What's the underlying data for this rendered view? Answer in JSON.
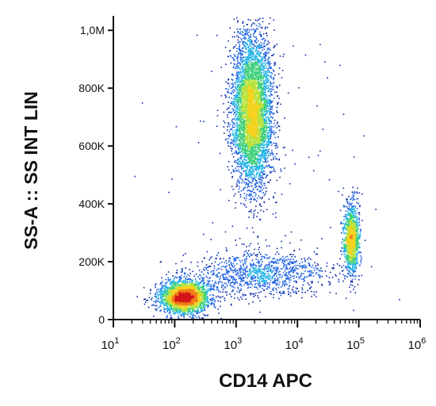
{
  "chart_data": {
    "type": "scatter",
    "title": "",
    "xlabel": "CD14 APC",
    "ylabel": "SS-A :: SS INT LIN",
    "x_scale": "log",
    "xlim": [
      10,
      1000000
    ],
    "ylim": [
      0,
      1050000
    ],
    "x_ticks": [
      {
        "value": 10,
        "label_base": "10",
        "label_exp": "1"
      },
      {
        "value": 100,
        "label_base": "10",
        "label_exp": "2"
      },
      {
        "value": 1000,
        "label_base": "10",
        "label_exp": "3"
      },
      {
        "value": 10000,
        "label_base": "10",
        "label_exp": "4"
      },
      {
        "value": 100000,
        "label_base": "10",
        "label_exp": "5"
      },
      {
        "value": 1000000,
        "label_base": "10",
        "label_exp": "6"
      }
    ],
    "y_ticks": [
      {
        "value": 0,
        "label": "0"
      },
      {
        "value": 200000,
        "label": "200K"
      },
      {
        "value": 400000,
        "label": "400K"
      },
      {
        "value": 600000,
        "label": "600K"
      },
      {
        "value": 800000,
        "label": "800K"
      },
      {
        "value": 1000000,
        "label": "1,0M"
      }
    ],
    "grid": false,
    "legend": "none",
    "colormap": [
      "#0a2aa8",
      "#1f62e0",
      "#20b3e6",
      "#3ed07a",
      "#b8e23a",
      "#f5d21f",
      "#f07a1a",
      "#d4141a"
    ],
    "populations": [
      {
        "center_x": 1800,
        "center_y": 720000,
        "spread_log10_x": 0.16,
        "spread_y": 130000,
        "count": 5200
      },
      {
        "center_x": 140,
        "center_y": 80000,
        "spread_log10_x": 0.2,
        "spread_y": 28000,
        "count": 2800
      },
      {
        "center_x": 75000,
        "center_y": 280000,
        "spread_log10_x": 0.06,
        "spread_y": 60000,
        "count": 1300
      },
      {
        "center_x": 2500,
        "center_y": 160000,
        "spread_log10_x": 0.55,
        "spread_y": 40000,
        "count": 1100
      },
      {
        "center_x": 5000,
        "center_y": 400000,
        "spread_log10_x": 1.0,
        "spread_y": 300000,
        "count": 120
      }
    ]
  }
}
